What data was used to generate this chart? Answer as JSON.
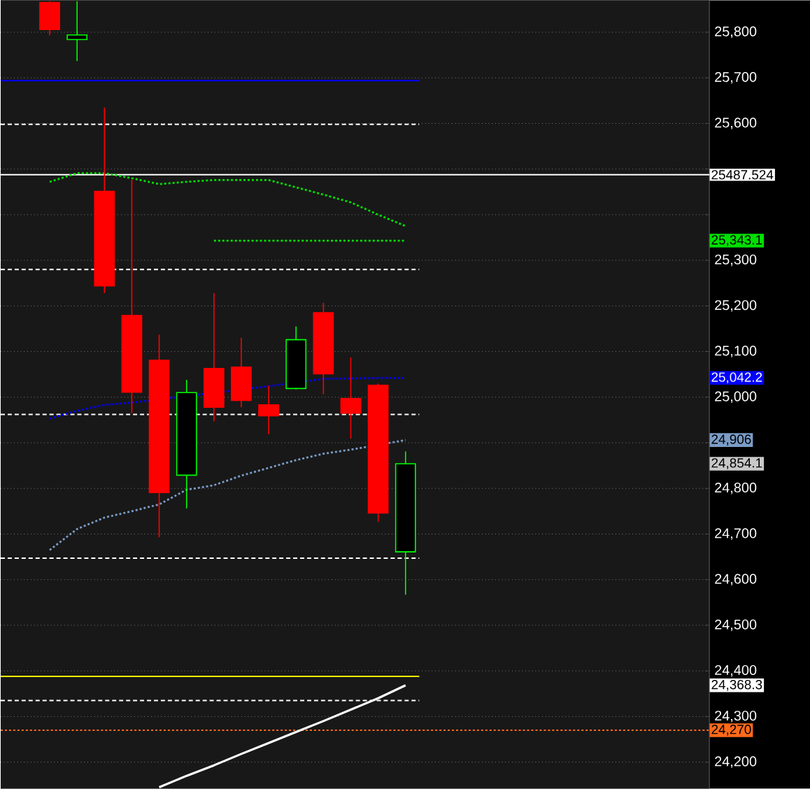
{
  "chart_data": {
    "type": "candlestick",
    "categories": [
      null,
      null,
      null,
      null,
      null,
      null,
      null,
      null,
      null,
      null,
      null,
      null,
      null,
      null
    ],
    "ohlc": [
      [
        25865,
        25868,
        25793,
        25806
      ],
      [
        25784,
        25868,
        25737,
        25794
      ],
      [
        25451,
        25635,
        25228,
        25244
      ],
      [
        25179,
        25477,
        24965,
        25011
      ],
      [
        25081,
        25137,
        24693,
        24791
      ],
      [
        24829,
        25038,
        24756,
        25010
      ],
      [
        25063,
        25228,
        24947,
        24978
      ],
      [
        25066,
        25130,
        24978,
        24993
      ],
      [
        24983,
        25025,
        24919,
        24959
      ],
      [
        25019,
        25155,
        25017,
        25126
      ],
      [
        25185,
        25207,
        25006,
        25051
      ],
      [
        24997,
        25087,
        24909,
        24965
      ],
      [
        25026,
        25030,
        24727,
        24746
      ],
      [
        24661,
        24881,
        24567,
        24854.1
      ]
    ],
    "colors": [
      "#ff0000",
      "#00ff00",
      "#ff0000",
      "#ff0000",
      "#ff0000",
      "#00ff00",
      "#ff0000",
      "#ff0000",
      "#ff0000",
      "#00ff00",
      "#ff0000",
      "#ff0000",
      "#ff0000",
      "#00ff00"
    ],
    "series": [
      {
        "type": "line",
        "color": "#00e000",
        "line_style": "dotted",
        "values": [
          25472,
          25491,
          25491,
          25480,
          25467,
          25472,
          25476,
          25476,
          25476,
          25460,
          25444,
          25427,
          25400,
          25375
        ]
      },
      {
        "type": "line",
        "name": "25,343.1",
        "color": "#00e000",
        "line_style": "dotted",
        "values": [
          null,
          null,
          null,
          null,
          null,
          null,
          25343.1,
          25343.1,
          25343.1,
          25343.1,
          25343.1,
          25343.1,
          25343.1,
          25343.1
        ]
      },
      {
        "type": "line",
        "name": "25,042.2",
        "color": "#0000ff",
        "line_style": "dotted",
        "values": [
          24953,
          24970,
          24983,
          24988,
          null,
          null,
          null,
          null,
          25024,
          null,
          25040,
          25041,
          25042,
          25042.2
        ]
      },
      {
        "type": "line",
        "name": "24,906",
        "color": "#7a9cc6",
        "line_style": "dotted",
        "values": [
          24665,
          24711,
          24736,
          24750,
          24765,
          24797,
          24807,
          24828,
          24845,
          24862,
          24876,
          24885,
          null,
          24906
        ]
      },
      {
        "type": "line",
        "name": "24,368.3",
        "color": "#ffffff",
        "line_style": "solid",
        "values": [
          null,
          null,
          null,
          null,
          24145,
          24170,
          24193,
          24218,
          24242,
          24266,
          24290,
          24315,
          24340,
          24368.3
        ]
      }
    ],
    "ref_lines": [
      {
        "axis": "y",
        "value": 25694,
        "color": "#0000ff",
        "line_style": "solid"
      },
      {
        "axis": "y",
        "value": 25598,
        "color": "#ffffff",
        "line_style": "dashed"
      },
      {
        "axis": "y",
        "value": 25280,
        "color": "#ffffff",
        "line_style": "dashed"
      },
      {
        "axis": "y",
        "value": 24962,
        "color": "#ffffff",
        "line_style": "dashed"
      },
      {
        "axis": "y",
        "value": 24647,
        "color": "#ffffff",
        "line_style": "dashed"
      },
      {
        "axis": "y",
        "value": 24335,
        "color": "#ffffff",
        "line_style": "dashed"
      },
      {
        "axis": "y",
        "value": 24388,
        "color": "#ffff00",
        "line_style": "solid"
      },
      {
        "axis": "y",
        "value": 24270,
        "color": "#ff6a1a",
        "line_style": "dotted",
        "label": "24,270"
      },
      {
        "axis": "y",
        "value": 25487.524,
        "color": "#ffffff",
        "line_style": "solid",
        "label": "25487.524"
      }
    ],
    "annotations": [
      "24,854.1"
    ],
    "ylim": [
      24142,
      25870
    ],
    "yticks": [
      {
        "value": 24200,
        "label": "24,200"
      },
      {
        "value": 24300,
        "label": "24,300"
      },
      {
        "value": 24400,
        "label": "24,400"
      },
      {
        "value": 24500,
        "label": "24,500"
      },
      {
        "value": 24600,
        "label": "24,600"
      },
      {
        "value": 24700,
        "label": "24,700"
      },
      {
        "value": 24800,
        "label": "24,800"
      },
      {
        "value": 24900,
        "label": null
      },
      {
        "value": 25000,
        "label": "25,000"
      },
      {
        "value": 25100,
        "label": "25,100"
      },
      {
        "value": 25200,
        "label": "25,200"
      },
      {
        "value": 25300,
        "label": "25,300"
      },
      {
        "value": 25400,
        "label": null
      },
      {
        "value": 25500,
        "label": null
      },
      {
        "value": 25600,
        "label": "25,600"
      },
      {
        "value": 25700,
        "label": "25,700"
      },
      {
        "value": 25800,
        "label": "25,800"
      }
    ],
    "tick_labels": "y",
    "grid": "y",
    "legend": "right",
    "marker": "none"
  }
}
